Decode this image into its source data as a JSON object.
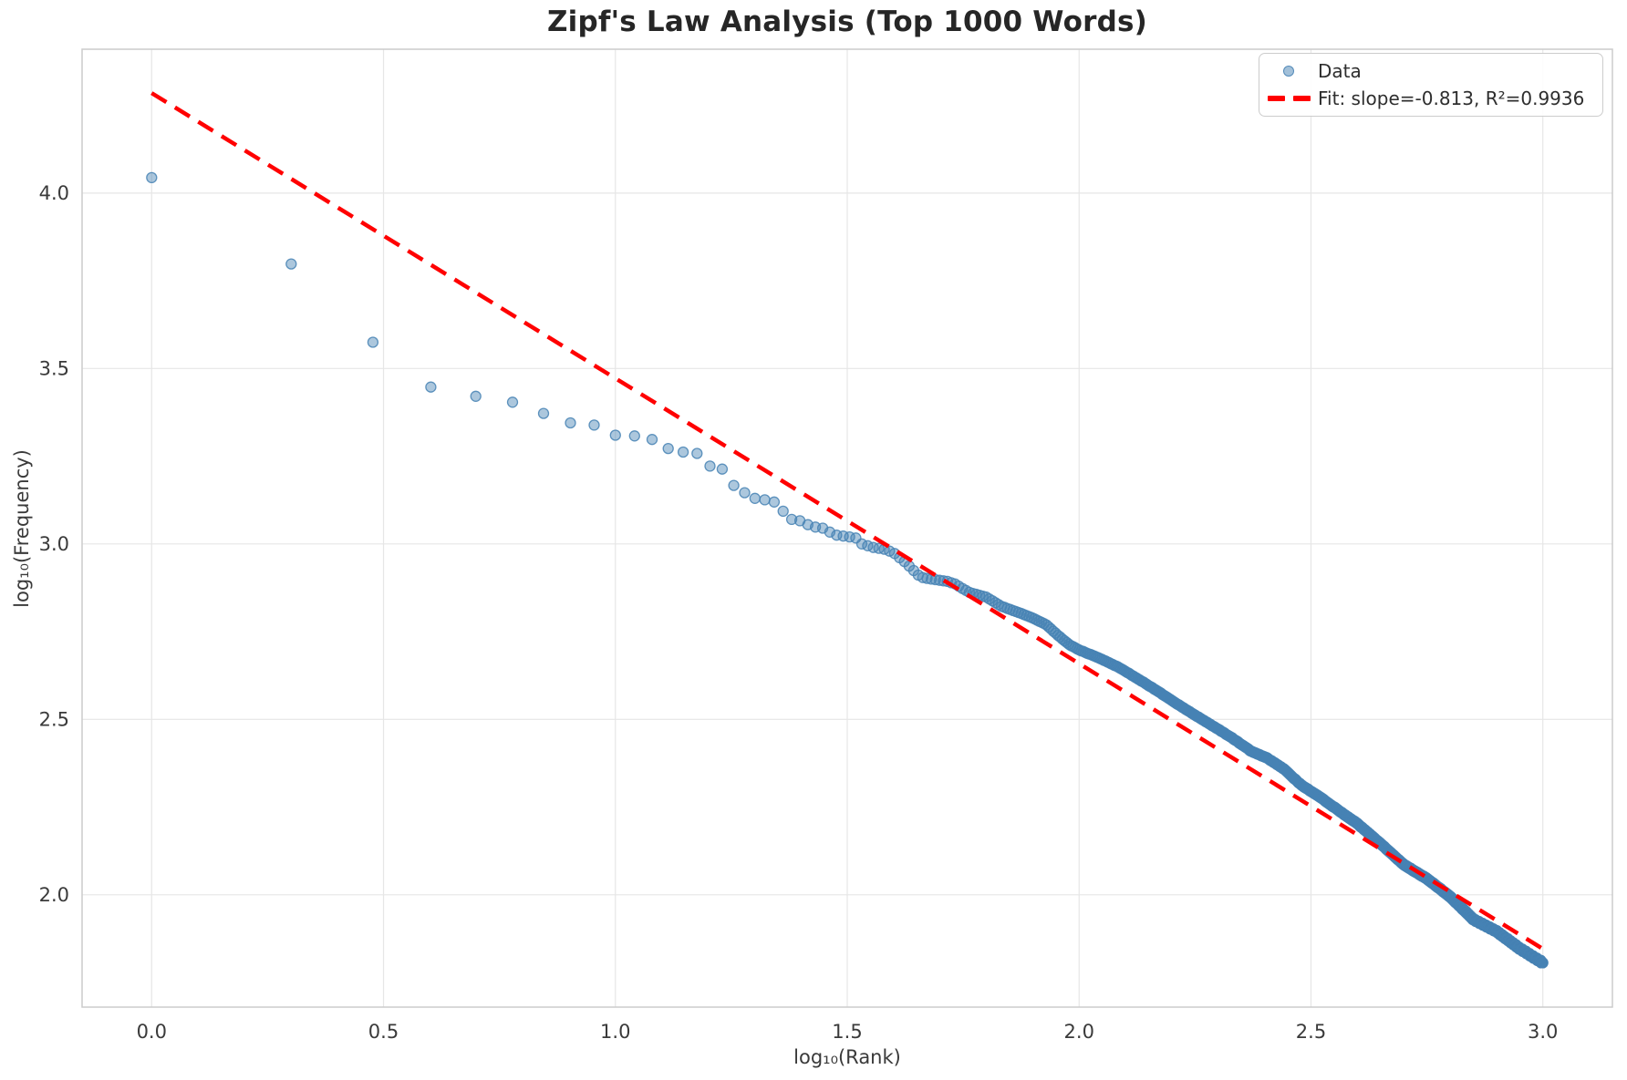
{
  "title": "Zipf's Law Analysis (Top 1000 Words)",
  "chart_data": {
    "type": "scatter",
    "title": "Zipf's Law Analysis (Top 1000 Words)",
    "xlabel": "log₁₀(Rank)",
    "ylabel": "log₁₀(Frequency)",
    "xlim": [
      -0.15,
      3.15
    ],
    "ylim": [
      1.68,
      4.41
    ],
    "x_ticks": [
      0.0,
      0.5,
      1.0,
      1.5,
      2.0,
      2.5,
      3.0
    ],
    "y_ticks": [
      2.0,
      2.5,
      3.0,
      3.5,
      4.0
    ],
    "grid": true,
    "legend": {
      "position": "upper right",
      "entries": [
        {
          "label": "Data",
          "marker": "circle"
        },
        {
          "label": "Fit: slope=-0.813, R²=0.9936",
          "marker": "dashed-line"
        }
      ]
    },
    "series": [
      {
        "name": "Data",
        "n_points": 1000,
        "x_definition": "log10(rank), rank = 1..1000",
        "y_definition": "log10(frequency), frequency quantized to integers",
        "anchors_log10rank_log10freq": [
          [
            0.0,
            4.044
          ],
          [
            0.301,
            3.798
          ],
          [
            0.477,
            3.575
          ],
          [
            0.602,
            3.447
          ],
          [
            0.699,
            3.421
          ],
          [
            0.778,
            3.404
          ],
          [
            0.845,
            3.372
          ],
          [
            0.903,
            3.345
          ],
          [
            0.954,
            3.339
          ],
          [
            1.0,
            3.31
          ],
          [
            1.041,
            3.308
          ],
          [
            1.079,
            3.298
          ],
          [
            1.114,
            3.272
          ],
          [
            1.146,
            3.262
          ],
          [
            1.176,
            3.258
          ],
          [
            1.204,
            3.222
          ],
          [
            1.23,
            3.214
          ],
          [
            1.255,
            3.167
          ],
          [
            1.279,
            3.146
          ],
          [
            1.301,
            3.13
          ],
          [
            1.322,
            3.126
          ],
          [
            1.342,
            3.12
          ],
          [
            1.362,
            3.093
          ],
          [
            1.38,
            3.07
          ],
          [
            1.398,
            3.066
          ],
          [
            1.415,
            3.055
          ],
          [
            1.431,
            3.048
          ],
          [
            1.447,
            3.045
          ],
          [
            1.462,
            3.034
          ],
          [
            1.477,
            3.025
          ],
          [
            1.505,
            3.02
          ],
          [
            1.519,
            3.017
          ],
          [
            1.531,
            3.0
          ],
          [
            1.556,
            2.99
          ],
          [
            1.58,
            2.985
          ],
          [
            1.6,
            2.975
          ],
          [
            1.623,
            2.95
          ],
          [
            1.643,
            2.925
          ],
          [
            1.658,
            2.905
          ],
          [
            1.69,
            2.898
          ],
          [
            1.716,
            2.893
          ],
          [
            1.732,
            2.886
          ],
          [
            1.763,
            2.862
          ],
          [
            1.799,
            2.849
          ],
          [
            1.833,
            2.822
          ],
          [
            1.869,
            2.805
          ],
          [
            1.898,
            2.79
          ],
          [
            1.929,
            2.77
          ],
          [
            1.954,
            2.74
          ],
          [
            1.98,
            2.712
          ],
          [
            2.0,
            2.698
          ],
          [
            2.041,
            2.676
          ],
          [
            2.086,
            2.648
          ],
          [
            2.13,
            2.613
          ],
          [
            2.17,
            2.58
          ],
          [
            2.21,
            2.545
          ],
          [
            2.25,
            2.512
          ],
          [
            2.29,
            2.48
          ],
          [
            2.33,
            2.447
          ],
          [
            2.37,
            2.41
          ],
          [
            2.405,
            2.39
          ],
          [
            2.44,
            2.36
          ],
          [
            2.48,
            2.312
          ],
          [
            2.52,
            2.278
          ],
          [
            2.56,
            2.24
          ],
          [
            2.6,
            2.203
          ],
          [
            2.65,
            2.146
          ],
          [
            2.7,
            2.086
          ],
          [
            2.75,
            2.046
          ],
          [
            2.8,
            1.995
          ],
          [
            2.85,
            1.93
          ],
          [
            2.9,
            1.896
          ],
          [
            2.95,
            1.847
          ],
          [
            3.0,
            1.806
          ]
        ]
      }
    ],
    "fit": {
      "label": "Fit: slope=-0.813, R²=0.9936",
      "slope": -0.813,
      "intercept": 4.285,
      "r_squared": 0.9936,
      "x_range": [
        0,
        3
      ],
      "style": "dashed"
    },
    "colors": {
      "scatter": "#4682B4",
      "scatter_fill_alpha": 0.45,
      "scatter_edge_alpha": 0.85,
      "fit_line": "#FF0000",
      "grid": "#E6E6E6",
      "spine": "#CCCCCC",
      "tick_text": "#3A3A3A",
      "title_text": "#262626",
      "label_text": "#3A3A3A",
      "legend_text": "#2E2E2E",
      "background": "#FFFFFF"
    }
  }
}
